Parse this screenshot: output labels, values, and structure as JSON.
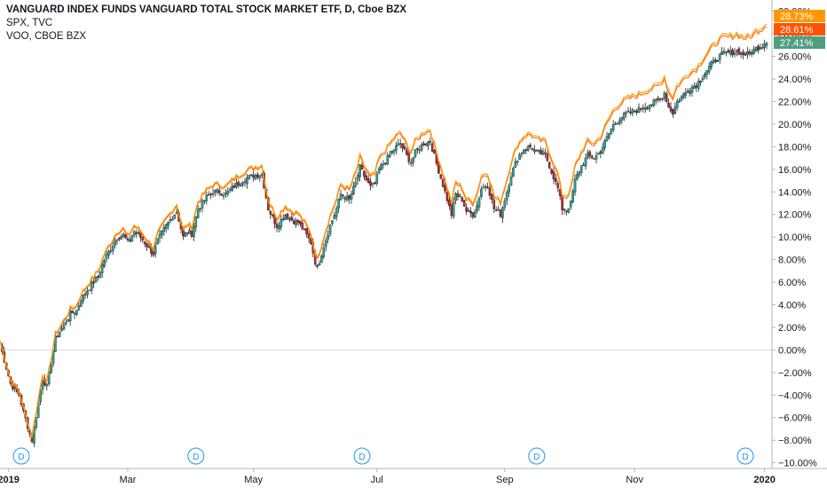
{
  "chart_data": {
    "type": "line",
    "legend": [
      {
        "key": "etf",
        "label": "VANGUARD INDEX FUNDS VANGUARD TOTAL STOCK MARKET ETF, D, Cboe BZX"
      },
      {
        "key": "spx",
        "label": "SPX, TVC"
      },
      {
        "key": "voo",
        "label": "VOO, CBOE BZX"
      }
    ],
    "y_axis": {
      "unit": "%",
      "ylim": [
        -10.5,
        31
      ],
      "ticks": [
        "30.00%",
        "28.00%",
        "26.00%",
        "24.00%",
        "22.00%",
        "20.00%",
        "18.00%",
        "16.00%",
        "14.00%",
        "12.00%",
        "10.00%",
        "8.00%",
        "6.00%",
        "4.00%",
        "2.00%",
        "0.00%",
        "−2.00%",
        "−4.00%",
        "−6.00%",
        "−8.00%",
        "−10.00%"
      ],
      "tick_values": [
        30,
        28,
        26,
        24,
        22,
        20,
        18,
        16,
        14,
        12,
        10,
        8,
        6,
        4,
        2,
        0,
        -2,
        -4,
        -6,
        -8,
        -10
      ]
    },
    "x_axis": {
      "ticks": [
        "2019",
        "Mar",
        "May",
        "Jul",
        "Sep",
        "Nov",
        "2020"
      ],
      "tick_index": [
        4,
        60,
        119,
        177,
        237,
        298,
        359
      ],
      "bold_ticks": [
        "2019",
        "2020"
      ]
    },
    "last_values": [
      {
        "label": "28.73%",
        "value": 28.73,
        "color": "#ff9800"
      },
      {
        "label": "28.61%",
        "value": 28.61,
        "color": "#ff5200"
      },
      {
        "label": "27.41%",
        "value": 27.41,
        "color": "#4e9f7f"
      }
    ],
    "markers": [
      {
        "label": "D",
        "index": 5
      },
      {
        "label": "D",
        "index": 87
      },
      {
        "label": "D",
        "index": 165
      },
      {
        "label": "D",
        "index": 247
      },
      {
        "label": "D",
        "index": 345
      }
    ],
    "colors": {
      "up": "#26a69a",
      "down": "#b22833",
      "spx": "#ff9800",
      "voo": "#ff6d00",
      "grid": "#dddddd"
    },
    "x_range": [
      0,
      360
    ],
    "anchors": [
      [
        0,
        0.5
      ],
      [
        5,
        -3.0
      ],
      [
        9,
        -4.0
      ],
      [
        11,
        -5.5
      ],
      [
        15,
        -8.0
      ],
      [
        20,
        -2.5
      ],
      [
        22,
        -3.3
      ],
      [
        26,
        1.0
      ],
      [
        30,
        2.2
      ],
      [
        33,
        3.2
      ],
      [
        36,
        3.5
      ],
      [
        38,
        4.5
      ],
      [
        40,
        5.0
      ],
      [
        43,
        5.8
      ],
      [
        46,
        6.5
      ],
      [
        49,
        8.0
      ],
      [
        52,
        9.0
      ],
      [
        55,
        10.0
      ],
      [
        58,
        10.2
      ],
      [
        60,
        9.5
      ],
      [
        63,
        10.5
      ],
      [
        66,
        10.0
      ],
      [
        70,
        9.0
      ],
      [
        72,
        8.5
      ],
      [
        74,
        9.7
      ],
      [
        78,
        11.0
      ],
      [
        81,
        11.8
      ],
      [
        83,
        12.3
      ],
      [
        86,
        10.0
      ],
      [
        88,
        10.5
      ],
      [
        90,
        10.3
      ],
      [
        93,
        12.5
      ],
      [
        97,
        13.5
      ],
      [
        100,
        14.0
      ],
      [
        103,
        14.0
      ],
      [
        106,
        13.8
      ],
      [
        110,
        14.5
      ],
      [
        114,
        15.0
      ],
      [
        117,
        15.3
      ],
      [
        120,
        15.5
      ],
      [
        123,
        15.6
      ],
      [
        126,
        12.5
      ],
      [
        130,
        11.0
      ],
      [
        134,
        12.0
      ],
      [
        137,
        11.5
      ],
      [
        140,
        11.3
      ],
      [
        143,
        10.5
      ],
      [
        146,
        9.5
      ],
      [
        148,
        7.8
      ],
      [
        149,
        7.2
      ],
      [
        152,
        9.2
      ],
      [
        155,
        11.0
      ],
      [
        158,
        12.5
      ],
      [
        160,
        13.8
      ],
      [
        164,
        13.3
      ],
      [
        167,
        14.8
      ],
      [
        169,
        16.2
      ],
      [
        171,
        15.4
      ],
      [
        174,
        14.4
      ],
      [
        176,
        14.7
      ],
      [
        178,
        16.0
      ],
      [
        182,
        17.0
      ],
      [
        185,
        17.8
      ],
      [
        188,
        18.3
      ],
      [
        191,
        17.2
      ],
      [
        193,
        16.6
      ],
      [
        195,
        17.5
      ],
      [
        199,
        18.3
      ],
      [
        202,
        18.5
      ],
      [
        205,
        16.5
      ],
      [
        209,
        14.0
      ],
      [
        212,
        12.0
      ],
      [
        214,
        13.8
      ],
      [
        217,
        13.3
      ],
      [
        219,
        12.3
      ],
      [
        222,
        12.0
      ],
      [
        224,
        12.8
      ],
      [
        226,
        14.3
      ],
      [
        229,
        14.6
      ],
      [
        232,
        12.5
      ],
      [
        235,
        12.0
      ],
      [
        238,
        14.0
      ],
      [
        240,
        15.5
      ],
      [
        243,
        17.0
      ],
      [
        246,
        17.8
      ],
      [
        249,
        18.0
      ],
      [
        252,
        17.5
      ],
      [
        256,
        17.3
      ],
      [
        258,
        16.3
      ],
      [
        260,
        15.3
      ],
      [
        262,
        14.3
      ],
      [
        264,
        12.5
      ],
      [
        266,
        12.4
      ],
      [
        268,
        13.0
      ],
      [
        270,
        15.0
      ],
      [
        273,
        16.3
      ],
      [
        276,
        17.2
      ],
      [
        279,
        17.0
      ],
      [
        282,
        17.6
      ],
      [
        285,
        18.8
      ],
      [
        288,
        19.9
      ],
      [
        291,
        20.5
      ],
      [
        294,
        20.9
      ],
      [
        297,
        21.1
      ],
      [
        300,
        21.3
      ],
      [
        303,
        21.6
      ],
      [
        306,
        21.8
      ],
      [
        308,
        22.0
      ],
      [
        310,
        22.2
      ],
      [
        312,
        22.8
      ],
      [
        314,
        21.5
      ],
      [
        316,
        21.0
      ],
      [
        318,
        22.0
      ],
      [
        321,
        22.6
      ],
      [
        324,
        23.2
      ],
      [
        327,
        23.5
      ],
      [
        330,
        24.3
      ],
      [
        334,
        25.3
      ],
      [
        337,
        25.9
      ],
      [
        340,
        26.3
      ],
      [
        343,
        26.3
      ],
      [
        346,
        26.5
      ],
      [
        349,
        26.2
      ],
      [
        352,
        26.2
      ],
      [
        355,
        26.7
      ],
      [
        358,
        27.0
      ],
      [
        360,
        27.4
      ]
    ]
  }
}
